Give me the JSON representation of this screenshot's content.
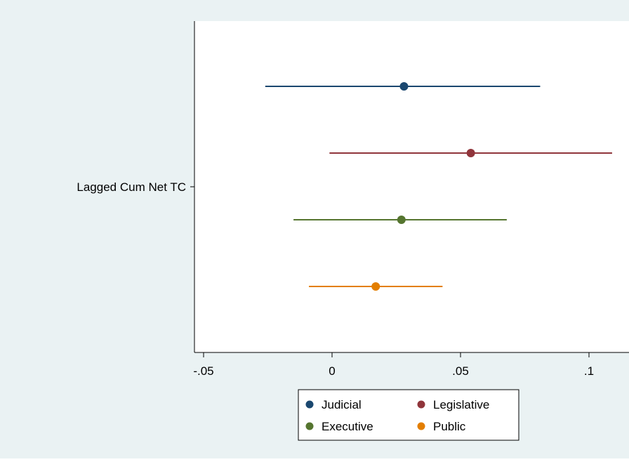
{
  "chart_data": {
    "type": "scatter",
    "subtype": "coefficient-plot",
    "orientation": "horizontal",
    "y_category": "Lagged Cum Net TC",
    "xlim": [
      -0.05,
      0.11
    ],
    "xticks": [
      {
        "value": -0.05,
        "label": "-.05"
      },
      {
        "value": 0,
        "label": "0"
      },
      {
        "value": 0.05,
        "label": ".05"
      },
      {
        "value": 0.1,
        "label": ".1"
      }
    ],
    "grid": false,
    "legend_position": "bottom",
    "series": [
      {
        "name": "Judicial",
        "color": "#1a476f",
        "estimate": 0.028,
        "ci_low": -0.026,
        "ci_high": 0.081
      },
      {
        "name": "Legislative",
        "color": "#90353b",
        "estimate": 0.054,
        "ci_low": -0.001,
        "ci_high": 0.109
      },
      {
        "name": "Executive",
        "color": "#55752f",
        "estimate": 0.027,
        "ci_low": -0.015,
        "ci_high": 0.068
      },
      {
        "name": "Public",
        "color": "#e37e00",
        "estimate": 0.017,
        "ci_low": -0.009,
        "ci_high": 0.043
      }
    ],
    "colors": {
      "background": "#eaf2f3",
      "plot_area": "#ffffff",
      "axis": "#000000"
    }
  }
}
